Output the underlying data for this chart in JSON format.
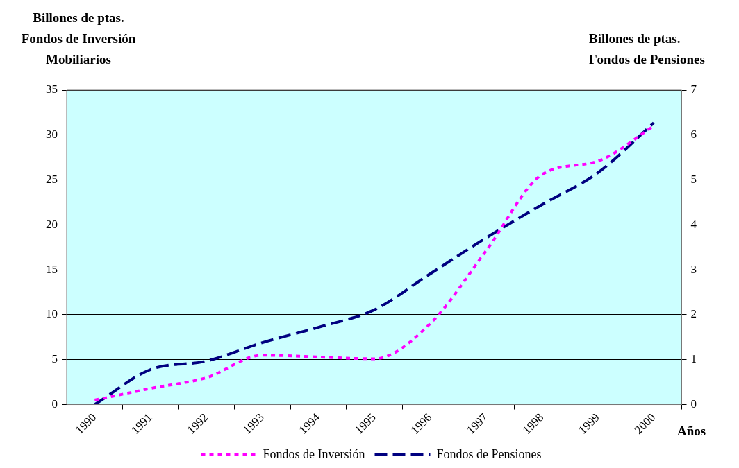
{
  "chart_data": {
    "type": "line",
    "ylabel": "Billones de ptas.\nFondos de Inversión\nMobiliarios",
    "y2label": "Billones de ptas.\nFondos de Pensiones",
    "xlabel": "Años",
    "categories": [
      "1990",
      "1991",
      "1992",
      "1993",
      "1994",
      "1995",
      "1996",
      "1997",
      "1998",
      "1999",
      "2000"
    ],
    "series": [
      {
        "name": "Fondos de Inversión",
        "color": "#ff00ff",
        "line_style": "dotted",
        "values": [
          0.5,
          1.8,
          3.0,
          5.5,
          5.3,
          5.1,
          9.0,
          17.1,
          25.6,
          27.1,
          31.0
        ]
      },
      {
        "name": "Fondos de Pensiones",
        "color": "#000080",
        "line_style": "dashed",
        "axis": "y2",
        "values": [
          0.0,
          0.78,
          0.97,
          1.38,
          1.72,
          2.11,
          2.91,
          3.71,
          4.45,
          5.16,
          6.27
        ]
      }
    ],
    "ylim": [
      0,
      35
    ],
    "yticks": [
      0,
      5,
      10,
      15,
      20,
      25,
      30,
      35
    ],
    "y2lim": [
      0,
      7
    ],
    "y2ticks": [
      0,
      1,
      2,
      3,
      4,
      5,
      6,
      7
    ],
    "grid": "y",
    "legend": "bottom",
    "marker": "none"
  }
}
